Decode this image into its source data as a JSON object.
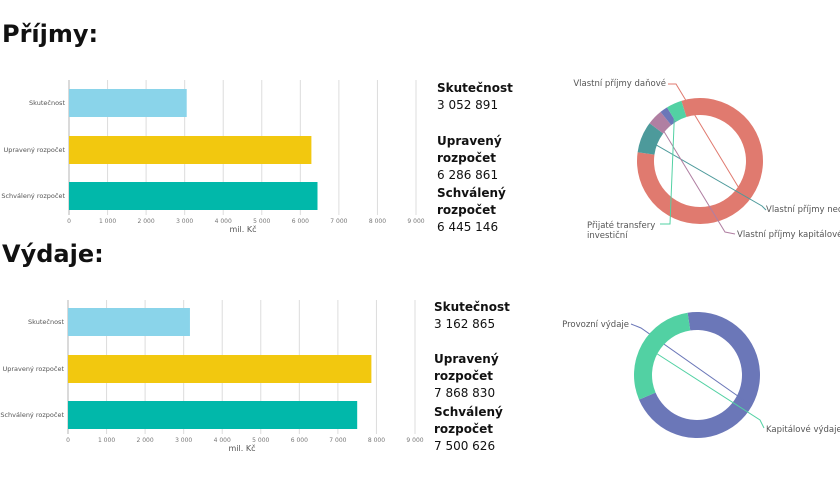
{
  "sections": [
    {
      "title": "Příjmy:"
    },
    {
      "title": "Výdaje:"
    }
  ],
  "chart_data": [
    {
      "type": "bar",
      "orientation": "horizontal",
      "categories": [
        "Skutečnost",
        "Upravený rozpočet",
        "Schválený rozpočet"
      ],
      "values": [
        3052891,
        6286861,
        6445146
      ],
      "colors": [
        "#8ad4ea",
        "#f2c80f",
        "#01b8aa"
      ],
      "xlabel": "mil. Kč",
      "xlim": [
        0,
        9000
      ],
      "xticks": [
        "0",
        "1 000",
        "2 000",
        "3 000",
        "4 000",
        "5 000",
        "6 000",
        "7 000",
        "8 000",
        "9 000"
      ],
      "grid": true
    },
    {
      "type": "table",
      "rows": [
        {
          "label": "Skutečnost",
          "value": "3 052 891"
        },
        {
          "label": "Upravený rozpočet",
          "value": "6 286 861"
        },
        {
          "label": "Schválený rozpočet",
          "value": "6 445 146"
        }
      ]
    },
    {
      "type": "pie",
      "donut": true,
      "slices": [
        {
          "label": "Vlastní příjmy daňové",
          "value": 82,
          "color": "#e07a6f"
        },
        {
          "label": "Vlastní příjmy nedaňové",
          "value": 8,
          "color": "#4d9a9b"
        },
        {
          "label": "Vlastní příjmy kapitálové",
          "value": 4,
          "color": "#b07fa2"
        },
        {
          "label": "",
          "value": 2,
          "color": "#6b77b8"
        },
        {
          "label": "Přijaté transfery investiční",
          "value": 4,
          "color": "#52d1a3"
        }
      ]
    },
    {
      "type": "bar",
      "orientation": "horizontal",
      "categories": [
        "Skutečnost",
        "Upravený rozpočet",
        "Schválený rozpočet"
      ],
      "values": [
        3162865,
        7868830,
        7500626
      ],
      "colors": [
        "#8ad4ea",
        "#f2c80f",
        "#01b8aa"
      ],
      "xlabel": "mil. Kč",
      "xlim": [
        0,
        9000
      ],
      "xticks": [
        "0",
        "1 000",
        "2 000",
        "3 000",
        "4 000",
        "5 000",
        "6 000",
        "7 000",
        "8 000",
        "9 000"
      ],
      "grid": true
    },
    {
      "type": "table",
      "rows": [
        {
          "label": "Skutečnost",
          "value": "3 162 865"
        },
        {
          "label": "Upravený rozpočet",
          "value": "7 868 830"
        },
        {
          "label": "Schválený rozpočet",
          "value": "7 500 626"
        }
      ]
    },
    {
      "type": "pie",
      "donut": true,
      "slices": [
        {
          "label": "Provozní výdaje",
          "value": 71,
          "color": "#6b77b8"
        },
        {
          "label": "Kapitálové výdaje",
          "value": 29,
          "color": "#52d1a3"
        }
      ]
    }
  ]
}
